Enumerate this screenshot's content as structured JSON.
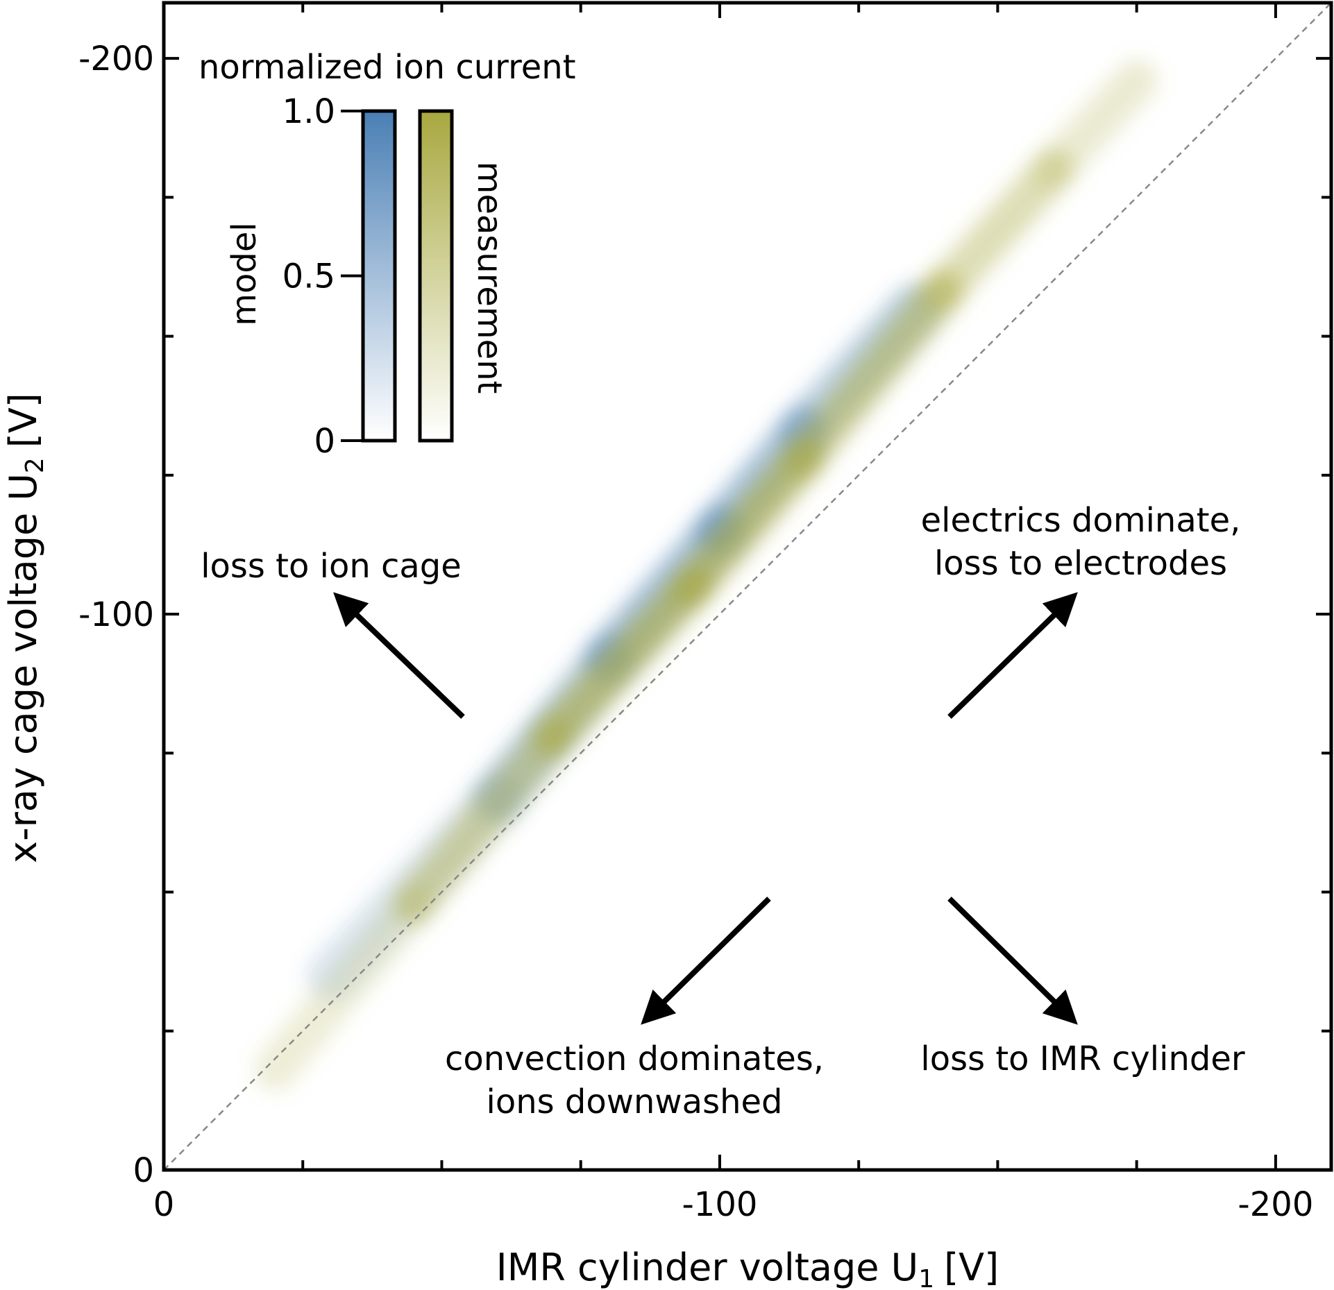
{
  "chart_data": {
    "type": "heatmap",
    "title": "",
    "xlabel": "IMR cylinder voltage U",
    "xlabel_sub": "1",
    "xlabel_unit": "[V]",
    "ylabel": "x-ray cage voltage U",
    "ylabel_sub": "2",
    "ylabel_unit": "[V]",
    "xlim": [
      0,
      -210
    ],
    "ylim": [
      0,
      -210
    ],
    "x_ticks": [
      0,
      -100,
      -200
    ],
    "x_tick_labels": [
      "0",
      "-100",
      "-200"
    ],
    "y_ticks": [
      0,
      -100,
      -200
    ],
    "y_tick_labels": [
      "0",
      "-100",
      "-200"
    ],
    "x_minor_ticks": [
      -25,
      -50,
      -75,
      -125,
      -150,
      -175
    ],
    "y_minor_ticks": [
      -25,
      -50,
      -75,
      -125,
      -150,
      -175
    ],
    "diagonal": {
      "style": "dashed",
      "from": [
        0,
        0
      ],
      "to": [
        -210,
        -210
      ]
    },
    "colorbar": {
      "title": "normalized ion current",
      "ticks": [
        0,
        0.5,
        1.0
      ],
      "tick_labels": [
        "0",
        "0.5",
        "1.0"
      ],
      "series": [
        {
          "name": "model",
          "color": "#4a7fb5"
        },
        {
          "name": "measurement",
          "color": "#a8a840"
        }
      ]
    },
    "series": [
      {
        "name": "model",
        "color": "#4a7fb5",
        "band": [
          {
            "x": -30,
            "y": -35,
            "value": 0.2
          },
          {
            "x": -60,
            "y": -67,
            "value": 0.5
          },
          {
            "x": -80,
            "y": -92,
            "value": 0.85
          },
          {
            "x": -100,
            "y": -115,
            "value": 0.9
          },
          {
            "x": -115,
            "y": -133,
            "value": 0.8
          },
          {
            "x": -135,
            "y": -155,
            "value": 0.5
          }
        ]
      },
      {
        "name": "measurement",
        "color": "#a8a840",
        "band": [
          {
            "x": -20,
            "y": -18,
            "value": 0.15
          },
          {
            "x": -45,
            "y": -48,
            "value": 0.4
          },
          {
            "x": -70,
            "y": -78,
            "value": 0.8
          },
          {
            "x": -95,
            "y": -105,
            "value": 0.85
          },
          {
            "x": -115,
            "y": -128,
            "value": 0.8
          },
          {
            "x": -140,
            "y": -158,
            "value": 0.6
          },
          {
            "x": -160,
            "y": -180,
            "value": 0.4
          },
          {
            "x": -175,
            "y": -196,
            "value": 0.2
          }
        ]
      }
    ],
    "annotations": [
      {
        "lines": [
          "loss to ion cage"
        ],
        "arrow_dir": "up-left"
      },
      {
        "lines": [
          "electrics dominate,",
          "loss to electrodes"
        ],
        "arrow_dir": "up-right"
      },
      {
        "lines": [
          "convection dominates,",
          "ions downwashed"
        ],
        "arrow_dir": "down-left"
      },
      {
        "lines": [
          "loss to IMR cylinder"
        ],
        "arrow_dir": "down-right"
      }
    ],
    "grid": false
  }
}
